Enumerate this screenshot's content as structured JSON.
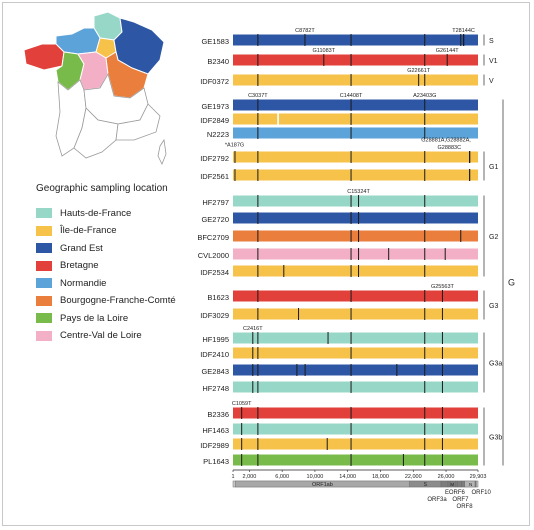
{
  "legend": {
    "title": "Geographic sampling location",
    "items": [
      {
        "label": "Hauts-de-France",
        "color": "#97d7c7"
      },
      {
        "label": "Île-de-France",
        "color": "#f6c24a"
      },
      {
        "label": "Grand Est",
        "color": "#2d56a4"
      },
      {
        "label": "Bretagne",
        "color": "#e2403a"
      },
      {
        "label": "Normandie",
        "color": "#5ba3d9"
      },
      {
        "label": "Bourgogne-Franche-Comté",
        "color": "#ea7e3c"
      },
      {
        "label": "Pays de la Loire",
        "color": "#79bb4b"
      },
      {
        "label": "Centre-Val de Loire",
        "color": "#f2afc6"
      }
    ]
  },
  "colors": {
    "hdf": "#97d7c7",
    "idf": "#f6c24a",
    "ge": "#2d56a4",
    "bre": "#e2403a",
    "nor": "#5ba3d9",
    "bfc": "#ea7e3c",
    "pdl": "#79bb4b",
    "cvl": "#f2afc6",
    "grey_region": "#ffffff",
    "mark": "#1a1a1a"
  },
  "genome": {
    "length": 29903,
    "ticks": [
      {
        "label": "1",
        "pos": 1
      },
      {
        "label": "2,000",
        "pos": 2000
      },
      {
        "label": "6,000",
        "pos": 6000
      },
      {
        "label": "10,000",
        "pos": 10000
      },
      {
        "label": "14,000",
        "pos": 14000
      },
      {
        "label": "18,000",
        "pos": 18000
      },
      {
        "label": "22,000",
        "pos": 22000
      },
      {
        "label": "26,000",
        "pos": 26000
      },
      {
        "label": "29,903",
        "pos": 29903
      }
    ],
    "orfs": [
      {
        "label": "ORF1ab",
        "start": 266,
        "end": 21555
      },
      {
        "label": "S",
        "start": 21563,
        "end": 25384
      },
      {
        "label": "ORF3a",
        "start": 25393,
        "end": 26220
      },
      {
        "label": "E",
        "start": 26245,
        "end": 26472
      },
      {
        "label": "M",
        "start": 26523,
        "end": 27191
      },
      {
        "label": "ORF6",
        "start": 27202,
        "end": 27387
      },
      {
        "label": "ORF7",
        "start": 27394,
        "end": 27887
      },
      {
        "label": "ORF8",
        "start": 27894,
        "end": 28259
      },
      {
        "label": "N",
        "start": 28274,
        "end": 29533
      },
      {
        "label": "ORF10",
        "start": 29558,
        "end": 29674
      }
    ]
  },
  "samples": [
    {
      "name": "GE1583",
      "region": "ge",
      "muts": [
        3037,
        8782,
        14408,
        23403,
        27800,
        28144,
        28160
      ]
    },
    {
      "name": "B2340",
      "region": "bre",
      "muts": [
        3037,
        11083,
        14408,
        23403,
        26144
      ]
    },
    {
      "name": "IDF0372",
      "region": "idf",
      "muts": [
        3037,
        14408,
        22661,
        23403
      ]
    },
    {
      "name": "GE1973",
      "region": "ge",
      "muts": [
        3037,
        14408,
        23403
      ]
    },
    {
      "name": "IDF2849",
      "region": "idf",
      "muts": [
        3037,
        14408,
        23403
      ],
      "gaps": [
        [
          5400,
          5600
        ]
      ]
    },
    {
      "name": "N2223",
      "region": "nor",
      "muts": [
        3037,
        14408,
        23403
      ]
    },
    {
      "name": "IDF2792",
      "region": "idf",
      "muts": [
        241,
        3037,
        14408,
        23403,
        28881,
        28882,
        28883
      ]
    },
    {
      "name": "IDF2561",
      "region": "idf",
      "muts": [
        241,
        3037,
        14408,
        23403,
        28881,
        28883
      ]
    },
    {
      "name": "HF2797",
      "region": "hdf",
      "muts": [
        3037,
        14408,
        15324,
        23403
      ]
    },
    {
      "name": "GE2720",
      "region": "ge",
      "muts": [
        3037,
        14408,
        15324,
        23403
      ]
    },
    {
      "name": "BFC2709",
      "region": "bfc",
      "muts": [
        3037,
        14408,
        15324,
        23403,
        27800
      ]
    },
    {
      "name": "CVL2000",
      "region": "cvl",
      "muts": [
        3037,
        14408,
        15324,
        19000,
        23403,
        25900
      ]
    },
    {
      "name": "IDF2534",
      "region": "idf",
      "muts": [
        3037,
        6200,
        14408,
        15324,
        23403
      ]
    },
    {
      "name": "B1623",
      "region": "bre",
      "muts": [
        3037,
        14408,
        23403,
        25563
      ]
    },
    {
      "name": "IDF3029",
      "region": "idf",
      "muts": [
        3037,
        8000,
        14408,
        23403,
        25563
      ]
    },
    {
      "name": "HF1995",
      "region": "hdf",
      "muts": [
        2416,
        3037,
        11600,
        14408,
        23403,
        25563
      ]
    },
    {
      "name": "IDF2410",
      "region": "idf",
      "muts": [
        2416,
        3037,
        14408,
        23403,
        25563
      ]
    },
    {
      "name": "GE2843",
      "region": "ge",
      "muts": [
        2416,
        3037,
        7800,
        8800,
        14408,
        20000,
        23403,
        25563
      ]
    },
    {
      "name": "HF2748",
      "region": "hdf",
      "muts": [
        2416,
        3037,
        14408,
        23403,
        25563
      ]
    },
    {
      "name": "B2336",
      "region": "bre",
      "muts": [
        1059,
        3037,
        14408,
        23403,
        25563
      ]
    },
    {
      "name": "HF1463",
      "region": "hdf",
      "muts": [
        1059,
        3037,
        14408,
        23403,
        25563
      ]
    },
    {
      "name": "IDF2989",
      "region": "idf",
      "muts": [
        1059,
        3037,
        11500,
        14408,
        23403,
        25563
      ]
    },
    {
      "name": "PL1643",
      "region": "pdl",
      "muts": [
        1059,
        3037,
        14408,
        20800,
        23403,
        25563
      ]
    }
  ],
  "annotations": [
    {
      "row": 0,
      "text": "C8782T",
      "pos": 8782,
      "side": "above"
    },
    {
      "row": 0,
      "text": "T28144C",
      "pos": 28144,
      "side": "above"
    },
    {
      "row": 1,
      "text": "G11083T",
      "pos": 11083,
      "side": "above"
    },
    {
      "row": 1,
      "text": "G26144T",
      "pos": 26144,
      "side": "above"
    },
    {
      "row": 2,
      "text": "G22661T",
      "pos": 22661,
      "side": "above"
    },
    {
      "row": 3,
      "text": "C3037T",
      "pos": 3037,
      "side": "above"
    },
    {
      "row": 3,
      "text": "C14408T",
      "pos": 14408,
      "side": "above"
    },
    {
      "row": 3,
      "text": "A23403G",
      "pos": 23403,
      "side": "above"
    },
    {
      "row": 5,
      "text": "*A187G",
      "pos": 187,
      "side": "below"
    },
    {
      "row": 6,
      "text": "G28881A,G28882A,",
      "pos": 26000,
      "side": "above2"
    },
    {
      "row": 6,
      "text": "G28883C",
      "pos": 26400,
      "side": "above"
    },
    {
      "row": 8,
      "text": "C15324T",
      "pos": 15324,
      "side": "above"
    },
    {
      "row": 13,
      "text": "G25563T",
      "pos": 25563,
      "side": "above"
    },
    {
      "row": 15,
      "text": "C2416T",
      "pos": 2416,
      "side": "above"
    },
    {
      "row": 19,
      "text": "C1059T",
      "pos": 1059,
      "side": "above"
    }
  ],
  "groups": [
    {
      "label": "S",
      "from": 0,
      "to": 0
    },
    {
      "label": "V1",
      "from": 1,
      "to": 1
    },
    {
      "label": "V",
      "from": 2,
      "to": 2
    },
    {
      "label": "G1",
      "from": 6,
      "to": 7
    },
    {
      "label": "G2",
      "from": 8,
      "to": 12
    },
    {
      "label": "G3",
      "from": 13,
      "to": 14
    },
    {
      "label": "G3a",
      "from": 15,
      "to": 18
    },
    {
      "label": "G3b",
      "from": 19,
      "to": 22
    }
  ],
  "big_groups": [
    {
      "label": "G",
      "from": 3,
      "to": 22
    }
  ]
}
